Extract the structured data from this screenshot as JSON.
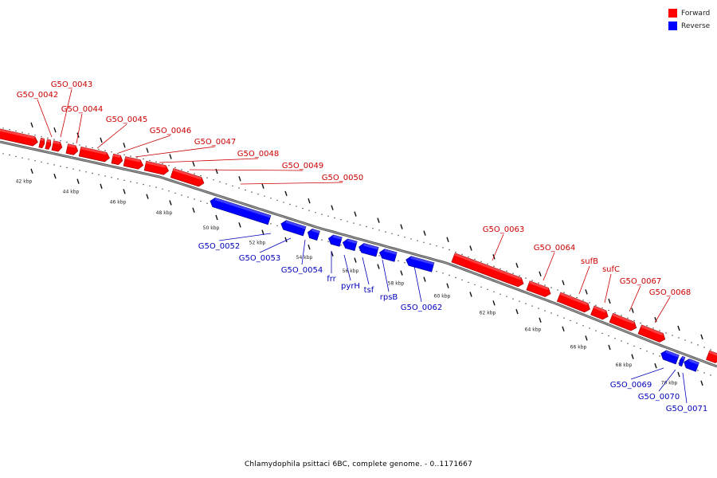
{
  "legend": [
    {
      "label": "Forward",
      "color": "#ff0000"
    },
    {
      "label": "Reverse",
      "color": "#0000ff"
    }
  ],
  "colors": {
    "forward": "#ff0000",
    "reverse": "#0000ff",
    "backbone": "#777777",
    "label_forward": "#cc0000",
    "label_reverse": "#0000bb"
  },
  "caption": "Chlamydophila psittaci 6BC, complete genome. - 0..1171667",
  "scale_unit": "kbp",
  "scale_ticks": [
    {
      "label": "42 kbp"
    },
    {
      "label": "44 kbp"
    },
    {
      "label": "46 kbp"
    },
    {
      "label": "48 kbp"
    },
    {
      "label": "50 kbp"
    },
    {
      "label": "52 kbp"
    },
    {
      "label": "54 kbp"
    },
    {
      "label": "56 kbp"
    },
    {
      "label": "58 kbp"
    },
    {
      "label": "60 kbp"
    },
    {
      "label": "62 kbp"
    },
    {
      "label": "64 kbp"
    },
    {
      "label": "66 kbp"
    },
    {
      "label": "68 kbp"
    },
    {
      "label": "70 kbp"
    }
  ],
  "features": [
    {
      "name": "",
      "strand": "forward"
    },
    {
      "name": "G5O_0042",
      "strand": "forward"
    },
    {
      "name": "G5O_0043",
      "strand": "forward"
    },
    {
      "name": "G5O_0044",
      "strand": "forward"
    },
    {
      "name": "G5O_0045",
      "strand": "forward"
    },
    {
      "name": "G5O_0046",
      "strand": "forward"
    },
    {
      "name": "G5O_0047",
      "strand": "forward"
    },
    {
      "name": "G5O_0048",
      "strand": "forward"
    },
    {
      "name": "G5O_0049",
      "strand": "forward"
    },
    {
      "name": "G5O_0050",
      "strand": "forward"
    },
    {
      "name": "G5O_0052",
      "strand": "reverse"
    },
    {
      "name": "G5O_0053",
      "strand": "reverse"
    },
    {
      "name": "G5O_0054",
      "strand": "reverse"
    },
    {
      "name": "frr",
      "strand": "reverse"
    },
    {
      "name": "pyrH",
      "strand": "reverse"
    },
    {
      "name": "tsf",
      "strand": "reverse"
    },
    {
      "name": "rpsB",
      "strand": "reverse"
    },
    {
      "name": "G5O_0062",
      "strand": "reverse"
    },
    {
      "name": "G5O_0063",
      "strand": "forward"
    },
    {
      "name": "G5O_0064",
      "strand": "forward"
    },
    {
      "name": "sufB",
      "strand": "forward"
    },
    {
      "name": "sufC",
      "strand": "forward"
    },
    {
      "name": "G5O_0067",
      "strand": "forward"
    },
    {
      "name": "G5O_0068",
      "strand": "forward"
    },
    {
      "name": "G5O_0069",
      "strand": "reverse"
    },
    {
      "name": "G5O_0070",
      "strand": "reverse"
    },
    {
      "name": "G5O_0071",
      "strand": "reverse"
    },
    {
      "name": "",
      "strand": "forward"
    }
  ]
}
